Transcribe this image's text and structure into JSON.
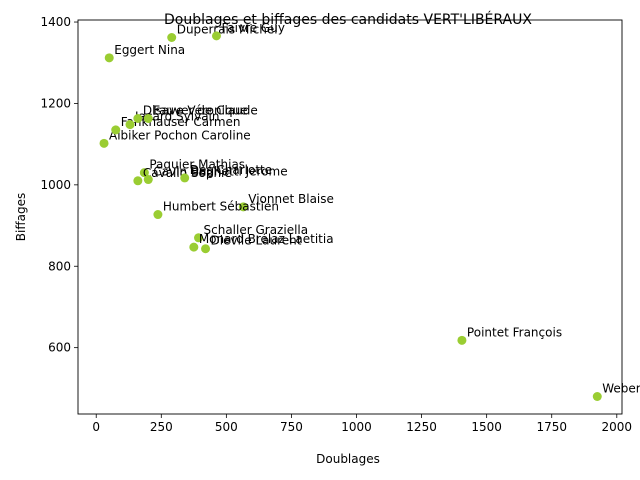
{
  "chart_data": {
    "type": "scatter",
    "title": "Doublages et biffages des candidats VERT'LIBÉRAUX",
    "xlabel": "Doublages",
    "ylabel": "Biffages",
    "xlim": [
      -70,
      2020
    ],
    "ylim": [
      437,
      1405
    ],
    "xticks": [
      0,
      250,
      500,
      750,
      1000,
      1250,
      1500,
      1750,
      2000
    ],
    "yticks": [
      400,
      600,
      800,
      1000,
      1200,
      1400
    ],
    "marker_color": "#9acd32",
    "grid": false,
    "points": [
      {
        "label": "Weber",
        "x": 1925,
        "y": 480
      },
      {
        "label": "Pointet François",
        "x": 1405,
        "y": 618
      },
      {
        "label": "Vionnet Blaise",
        "x": 565,
        "y": 946
      },
      {
        "label": "Humbert Sébastien",
        "x": 237,
        "y": 927
      },
      {
        "label": "Schaller Graziella",
        "x": 393,
        "y": 870
      },
      {
        "label": "Monard Brélaz Laetitia",
        "x": 375,
        "y": 847
      },
      {
        "label": "Dievile Laurent",
        "x": 420,
        "y": 843
      },
      {
        "label": "Paquier Mathias",
        "x": 185,
        "y": 1030
      },
      {
        "label": "Cavallo Sophie",
        "x": 160,
        "y": 1010
      },
      {
        "label": "Cavin Baghetti Jerome",
        "x": 200,
        "y": 1013
      },
      {
        "label": "Des Charlotte",
        "x": 340,
        "y": 1017
      },
      {
        "label": "Albiker Pochon Caroline",
        "x": 30,
        "y": 1102
      },
      {
        "label": "Fankhauser Carmen",
        "x": 75,
        "y": 1135
      },
      {
        "label": "Jacard Sylvain",
        "x": 130,
        "y": 1148
      },
      {
        "label": "Dlsave Véronique",
        "x": 160,
        "y": 1163
      },
      {
        "label": "Fauver de Claude",
        "x": 200,
        "y": 1163
      },
      {
        "label": "Eggert Nina",
        "x": 50,
        "y": 1312
      },
      {
        "label": "Duperrais Michel",
        "x": 290,
        "y": 1362
      },
      {
        "label": "Faivre Guy",
        "x": 462,
        "y": 1366
      }
    ]
  }
}
